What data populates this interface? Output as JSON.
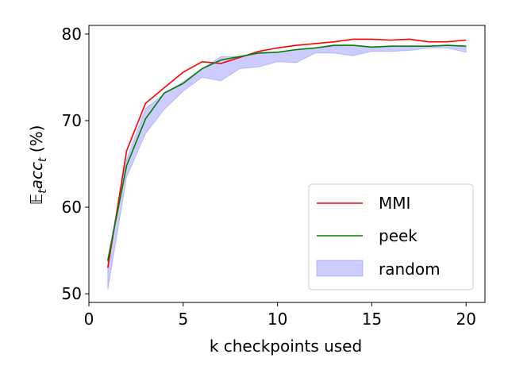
{
  "chart_data": {
    "type": "line",
    "xlabel": "k checkpoints used",
    "ylabel": {
      "prefix": "𝔼",
      "prefix_sub": "t",
      "main": "acc",
      "main_sub": "t",
      "suffix": " (%)"
    },
    "xlim": [
      0,
      21
    ],
    "ylim": [
      49,
      81
    ],
    "xticks": [
      0,
      5,
      10,
      15,
      20
    ],
    "yticks": [
      50,
      60,
      70,
      80
    ],
    "x": [
      1,
      2,
      3,
      4,
      5,
      6,
      7,
      8,
      9,
      10,
      11,
      12,
      13,
      14,
      15,
      16,
      17,
      18,
      19,
      20
    ],
    "series": [
      {
        "name": "MMI",
        "color": "#ff0000",
        "kind": "line",
        "values": [
          53.0,
          66.5,
          72.0,
          73.8,
          75.6,
          76.8,
          76.6,
          77.3,
          78.0,
          78.4,
          78.7,
          78.9,
          79.1,
          79.4,
          79.4,
          79.3,
          79.4,
          79.1,
          79.1,
          79.3
        ]
      },
      {
        "name": "peek",
        "color": "#008000",
        "kind": "line",
        "values": [
          53.8,
          64.8,
          70.2,
          73.2,
          74.3,
          76.0,
          77.0,
          77.4,
          77.8,
          77.9,
          78.2,
          78.4,
          78.7,
          78.7,
          78.5,
          78.6,
          78.6,
          78.6,
          78.7,
          78.6
        ]
      },
      {
        "name": "random",
        "color": "#0000ff",
        "kind": "band",
        "lower": [
          50.5,
          63.5,
          68.5,
          71.3,
          73.4,
          75.0,
          74.6,
          76.0,
          76.2,
          76.8,
          76.7,
          77.8,
          77.8,
          77.5,
          78.0,
          78.0,
          78.1,
          78.4,
          78.4,
          77.9
        ],
        "upper": [
          54.2,
          65.5,
          71.4,
          73.1,
          74.5,
          76.0,
          77.4,
          77.4,
          77.9,
          77.9,
          78.2,
          78.4,
          78.6,
          78.7,
          78.5,
          78.6,
          78.6,
          78.6,
          78.7,
          78.6
        ]
      }
    ],
    "legend": {
      "position": "lower-right",
      "entries": [
        "MMI",
        "peek",
        "random"
      ]
    },
    "grid": false
  }
}
